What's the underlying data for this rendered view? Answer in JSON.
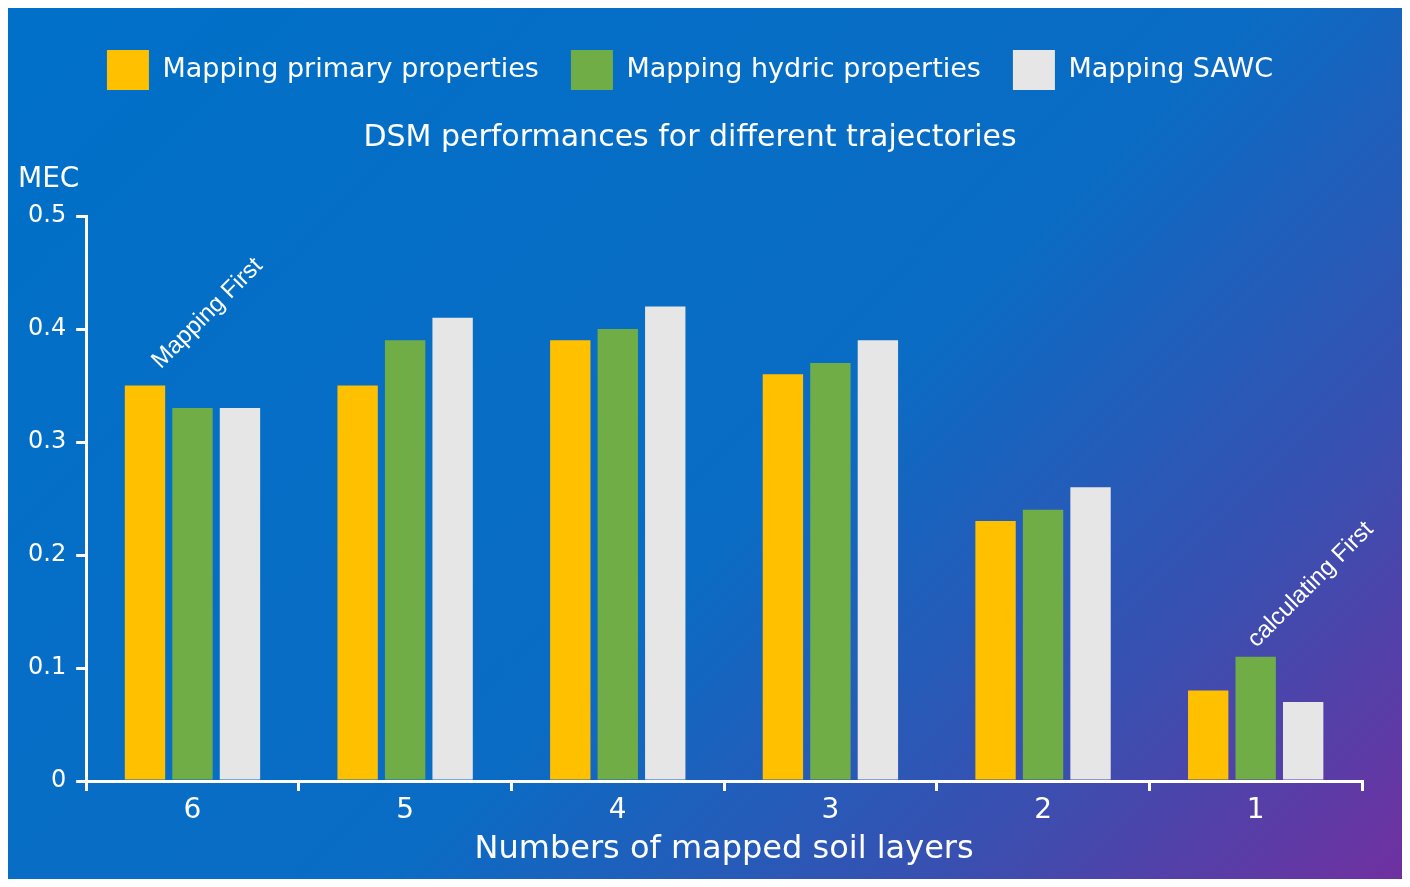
{
  "chart_data": {
    "type": "bar",
    "title": "DSM performances for different trajectories",
    "xlabel": "Numbers of mapped soil layers",
    "ylabel": "MEC",
    "categories": [
      "6",
      "5",
      "4",
      "3",
      "2",
      "1"
    ],
    "series": [
      {
        "name": "Mapping primary properties",
        "color": "#ffc000",
        "values": [
          0.35,
          0.35,
          0.39,
          0.36,
          0.23,
          0.08
        ]
      },
      {
        "name": "Mapping hydric properties",
        "color": "#70ad47",
        "values": [
          0.33,
          0.39,
          0.4,
          0.37,
          0.24,
          0.11
        ]
      },
      {
        "name": "Mapping SAWC",
        "color": "#e7e6e6",
        "values": [
          0.33,
          0.41,
          0.42,
          0.39,
          0.26,
          0.07
        ]
      }
    ],
    "ylim": [
      0,
      0.5
    ],
    "yticks": [
      0,
      0.1,
      0.2,
      0.3,
      0.4,
      0.5
    ],
    "grid": false,
    "legend": "top",
    "annotations": [
      "Mapping First",
      "calculating First"
    ]
  }
}
